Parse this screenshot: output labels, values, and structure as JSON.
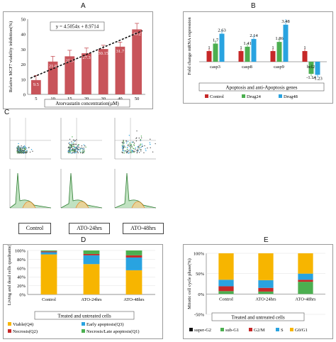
{
  "panels": {
    "A": "A",
    "B": "B",
    "C": "C",
    "D": "D",
    "E": "E"
  },
  "chart_data": [
    {
      "id": "A",
      "type": "bar",
      "categories": [
        "5",
        "10",
        "15",
        "20",
        "30",
        "40",
        "50"
      ],
      "values": [
        9.5,
        21.8,
        25.3,
        27.3,
        30.15,
        31.7,
        43.2
      ],
      "errors": [
        3,
        3.5,
        4,
        3.5,
        2.5,
        3,
        4
      ],
      "data_labels": [
        "9.5",
        "21.8",
        "25.3",
        "27.3",
        "30.15",
        "31.7",
        "43.2"
      ],
      "equation": "y = 4.5054x + 8.9714",
      "xlabel": "Atorvastatin concentration(µM)",
      "ylabel": "Relative MCF7 viability inhibition(%)",
      "yticks": [
        "0",
        "10",
        "20",
        "30",
        "40",
        "50"
      ],
      "ylim": [
        0,
        50
      ],
      "trendline": true,
      "colors": {
        "bar": "#c8545a",
        "error": "#c8545a",
        "trend": "#111111"
      }
    },
    {
      "id": "B",
      "type": "bar",
      "categories": [
        "casp3",
        "casp8",
        "casp9",
        "bcl2"
      ],
      "series": [
        {
          "name": "Control",
          "values": [
            1,
            1,
            1,
            1
          ],
          "labels": [
            "1",
            "1",
            "1",
            "1"
          ],
          "color": "#c62828"
        },
        {
          "name": "Drug24",
          "values": [
            1.7,
            1.41,
            1.86,
            -1.14
          ],
          "labels": [
            "1.7",
            "1.41",
            "1.86",
            "-1.14"
          ],
          "color": "#4caf50"
        },
        {
          "name": "Drug48",
          "values": [
            2.63,
            2.14,
            3.48,
            -1.23
          ],
          "labels": [
            "2.63",
            "2.14",
            "3.48",
            "-1.23"
          ],
          "color": "#29a3e0"
        }
      ],
      "xlabel": "Apoptosis and anti-Apoptosis genes",
      "ylabel": "Fold change mRNA expression",
      "ylim": [
        -1.6,
        4
      ]
    },
    {
      "id": "D",
      "type": "bar",
      "stacked": true,
      "categories": [
        "Control",
        "ATO-24hrs",
        "ATO-48hrs"
      ],
      "series": [
        {
          "name": "Viable(Q4)",
          "values": [
            91,
            69,
            55
          ],
          "color": "#f7b500"
        },
        {
          "name": "Early apoptosis(Q3)",
          "values": [
            5,
            20,
            29
          ],
          "color": "#29a3e0"
        },
        {
          "name": "Necrosis(Q2)",
          "values": [
            2,
            3,
            5
          ],
          "color": "#c62828"
        },
        {
          "name": "Necrosis/Late apoptosis(Q1)",
          "values": [
            2,
            8,
            11
          ],
          "color": "#4caf50"
        }
      ],
      "yticks": [
        "0%",
        "20%",
        "40%",
        "60%",
        "80%",
        "100%"
      ],
      "xlabel": "Treated and untreated cells",
      "ylabel": "Living and dead cells quadrants(%)"
    },
    {
      "id": "E",
      "type": "bar",
      "stacked": true,
      "categories": [
        "Control",
        "ATO-24hrs",
        "ATO-48hrs"
      ],
      "series": [
        {
          "name": "super-G2",
          "values": [
            0,
            0,
            0
          ],
          "color": "#111111"
        },
        {
          "name": "sub-G1",
          "values": [
            7,
            6,
            30
          ],
          "color": "#4caf50"
        },
        {
          "name": "G2/M",
          "values": [
            12,
            9,
            5
          ],
          "color": "#c62828"
        },
        {
          "name": "S",
          "values": [
            16,
            19,
            15
          ],
          "color": "#29a3e0"
        },
        {
          "name": "G0/G1",
          "values": [
            65,
            66,
            50
          ],
          "color": "#f7b500"
        }
      ],
      "yticks": [
        "-50%",
        "0%",
        "50%",
        "100%"
      ],
      "ylim": [
        -50,
        100
      ],
      "xlabel": "Treated and untreated cells",
      "ylabel": "Mitotic cell cycle phase(%)"
    }
  ],
  "flow": {
    "captions": [
      "Control",
      "ATO-24hrs",
      "ATO-48hrs"
    ]
  }
}
